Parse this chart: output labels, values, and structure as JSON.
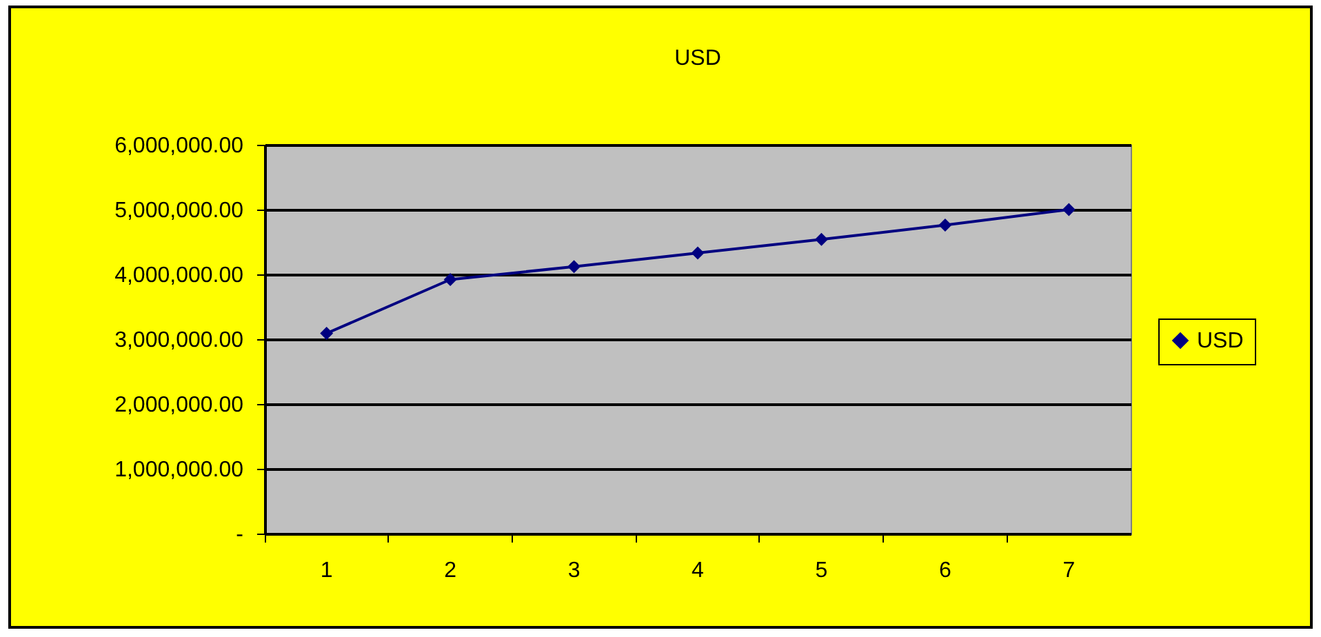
{
  "chart_data": {
    "type": "line",
    "title": "USD",
    "categories": [
      "1",
      "2",
      "3",
      "4",
      "5",
      "6",
      "7"
    ],
    "series": [
      {
        "name": "USD",
        "color": "#000080",
        "values": [
          3090000,
          3920000,
          4120000,
          4330000,
          4540000,
          4760000,
          5000000
        ]
      }
    ],
    "ylim": [
      0,
      6000000
    ],
    "yticks": [
      {
        "value": 0,
        "label": "-"
      },
      {
        "value": 1000000,
        "label": "1,000,000.00"
      },
      {
        "value": 2000000,
        "label": "2,000,000.00"
      },
      {
        "value": 3000000,
        "label": "3,000,000.00"
      },
      {
        "value": 4000000,
        "label": "4,000,000.00"
      },
      {
        "value": 5000000,
        "label": "5,000,000.00"
      },
      {
        "value": 6000000,
        "label": "6,000,000.00"
      }
    ],
    "grid": "y",
    "legend": "right",
    "marker": "diamond",
    "line_style": "solid"
  }
}
